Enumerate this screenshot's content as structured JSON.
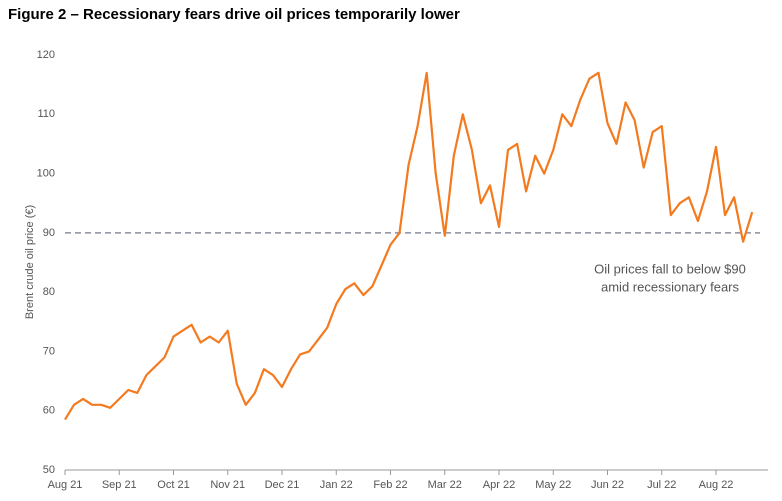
{
  "chart_data": {
    "type": "line",
    "title": "Figure 2 – Recessionary fears drive oil prices temporarily lower",
    "y_label": "Brent crude oil price (€)",
    "annotation": [
      "Oil prices fall to below $90",
      "amid recessionary fears"
    ],
    "reference_line": 90,
    "categories": [
      "Aug 21",
      null,
      null,
      null,
      null,
      null,
      "Sep 21",
      null,
      null,
      null,
      null,
      null,
      "Oct 21",
      null,
      null,
      null,
      null,
      null,
      "Nov 21",
      null,
      null,
      null,
      null,
      null,
      "Dec 21",
      null,
      null,
      null,
      null,
      null,
      "Jan 22",
      null,
      null,
      null,
      null,
      null,
      "Feb 22",
      null,
      null,
      null,
      null,
      null,
      "Mar 22",
      null,
      null,
      null,
      null,
      null,
      "Apr 22",
      null,
      null,
      null,
      null,
      null,
      "May 22",
      null,
      null,
      null,
      null,
      null,
      "Jun 22",
      null,
      null,
      null,
      null,
      null,
      "Jul 22",
      null,
      null,
      null,
      null,
      null,
      "Aug 22",
      null,
      null,
      null,
      null
    ],
    "series": [
      {
        "name": "Brent crude oil price",
        "color": "#f47a1f",
        "values": [
          58.5,
          61,
          62,
          61,
          61,
          60.5,
          62,
          63.5,
          63,
          66,
          67.5,
          69,
          72.5,
          73.5,
          74.5,
          71.5,
          72.5,
          71.5,
          73.5,
          64.5,
          61,
          63,
          67,
          66,
          64,
          67,
          69.5,
          70,
          72,
          74,
          78,
          80.5,
          81.5,
          79.5,
          81,
          84.5,
          88,
          90,
          101.5,
          108,
          117,
          100,
          89.5,
          103,
          110,
          104,
          95,
          98,
          91,
          104,
          105,
          97,
          103,
          100,
          104,
          110,
          108,
          112.5,
          116,
          117,
          108.5,
          105,
          112,
          109,
          101,
          107,
          108,
          93,
          95,
          96,
          92,
          97,
          104.5,
          93,
          96,
          88.5,
          93.5
        ]
      }
    ],
    "ylim": [
      50,
      120
    ],
    "yticks": [
      50,
      60,
      70,
      80,
      90,
      100,
      110,
      120
    ]
  }
}
